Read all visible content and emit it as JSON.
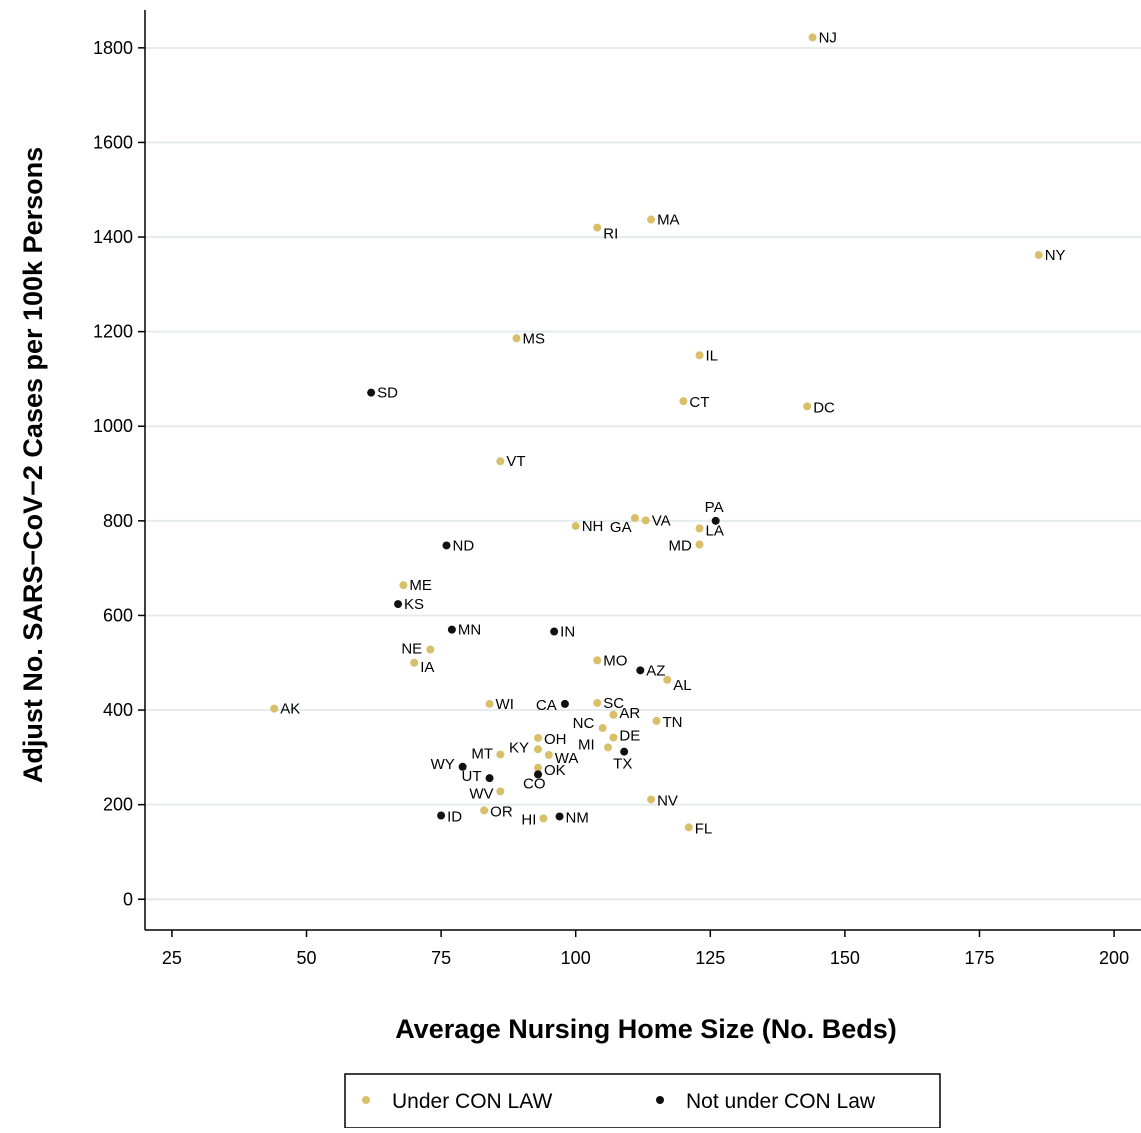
{
  "chart_data": {
    "type": "scatter",
    "title": "",
    "xlabel": "Average Nursing Home Size (No. Beds)",
    "ylabel": "Adjust No. SARS−CoV−2 Cases per 100k Persons",
    "xlim": [
      20,
      205
    ],
    "ylim": [
      -65,
      1880
    ],
    "xticks": [
      25,
      50,
      75,
      100,
      125,
      150,
      175,
      200
    ],
    "yticks": [
      0,
      200,
      400,
      600,
      800,
      1000,
      1200,
      1400,
      1600,
      1800
    ],
    "grid": "horizontal",
    "legend_position": "bottom",
    "series": [
      {
        "name": "Under CON LAW",
        "color": "#d9bf6a",
        "points": [
          {
            "label": "NJ",
            "x": 144,
            "y": 1822
          },
          {
            "label": "NY",
            "x": 186,
            "y": 1362
          },
          {
            "label": "MA",
            "x": 114,
            "y": 1437
          },
          {
            "label": "RI",
            "x": 104,
            "y": 1420
          },
          {
            "label": "MS",
            "x": 89,
            "y": 1186
          },
          {
            "label": "IL",
            "x": 123,
            "y": 1150
          },
          {
            "label": "CT",
            "x": 120,
            "y": 1053
          },
          {
            "label": "DC",
            "x": 143,
            "y": 1042
          },
          {
            "label": "VT",
            "x": 86,
            "y": 926
          },
          {
            "label": "NH",
            "x": 100,
            "y": 789
          },
          {
            "label": "GA",
            "x": 111,
            "y": 806
          },
          {
            "label": "VA",
            "x": 113,
            "y": 801
          },
          {
            "label": "LA",
            "x": 123,
            "y": 784
          },
          {
            "label": "MD",
            "x": 123,
            "y": 750
          },
          {
            "label": "ME",
            "x": 68,
            "y": 664
          },
          {
            "label": "NE",
            "x": 73,
            "y": 528
          },
          {
            "label": "IA",
            "x": 70,
            "y": 500
          },
          {
            "label": "MO",
            "x": 104,
            "y": 505
          },
          {
            "label": "AL",
            "x": 117,
            "y": 464
          },
          {
            "label": "AK",
            "x": 44,
            "y": 403
          },
          {
            "label": "WI",
            "x": 84,
            "y": 413
          },
          {
            "label": "SC",
            "x": 104,
            "y": 415
          },
          {
            "label": "AR",
            "x": 107,
            "y": 390
          },
          {
            "label": "TN",
            "x": 115,
            "y": 377
          },
          {
            "label": "NC",
            "x": 105,
            "y": 362
          },
          {
            "label": "DE",
            "x": 107,
            "y": 342
          },
          {
            "label": "OH",
            "x": 93,
            "y": 341
          },
          {
            "label": "MI",
            "x": 106,
            "y": 321
          },
          {
            "label": "KY",
            "x": 93,
            "y": 317
          },
          {
            "label": "WA",
            "x": 95,
            "y": 305
          },
          {
            "label": "MT",
            "x": 86,
            "y": 306
          },
          {
            "label": "OK",
            "x": 93,
            "y": 278
          },
          {
            "label": "WV",
            "x": 86,
            "y": 228
          },
          {
            "label": "NV",
            "x": 114,
            "y": 211
          },
          {
            "label": "OR",
            "x": 83,
            "y": 188
          },
          {
            "label": "HI",
            "x": 94,
            "y": 171
          },
          {
            "label": "FL",
            "x": 121,
            "y": 152
          }
        ]
      },
      {
        "name": "Not under CON Law",
        "color": "#111111",
        "points": [
          {
            "label": "SD",
            "x": 62,
            "y": 1071
          },
          {
            "label": "PA",
            "x": 126,
            "y": 800
          },
          {
            "label": "ND",
            "x": 76,
            "y": 748
          },
          {
            "label": "KS",
            "x": 67,
            "y": 624
          },
          {
            "label": "MN",
            "x": 77,
            "y": 570
          },
          {
            "label": "IN",
            "x": 96,
            "y": 566
          },
          {
            "label": "AZ",
            "x": 112,
            "y": 484
          },
          {
            "label": "CA",
            "x": 98,
            "y": 413
          },
          {
            "label": "TX",
            "x": 109,
            "y": 312
          },
          {
            "label": "WY",
            "x": 79,
            "y": 280
          },
          {
            "label": "CO",
            "x": 93,
            "y": 264
          },
          {
            "label": "UT",
            "x": 84,
            "y": 256
          },
          {
            "label": "ID",
            "x": 75,
            "y": 177
          },
          {
            "label": "NM",
            "x": 97,
            "y": 175
          }
        ]
      }
    ]
  }
}
